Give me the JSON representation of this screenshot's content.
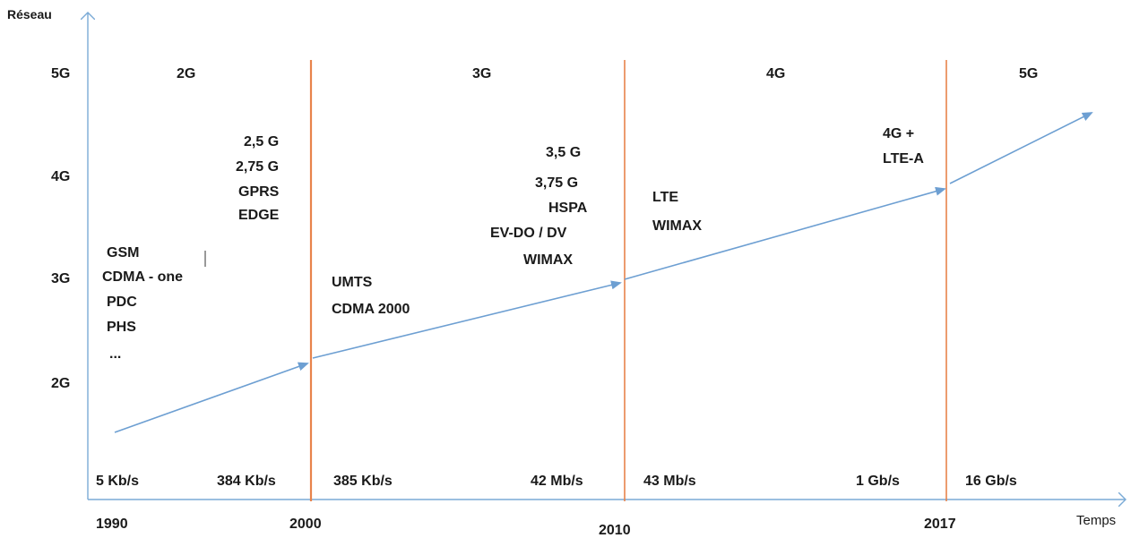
{
  "axes": {
    "y_title": "Réseau",
    "x_title": "Temps",
    "y_levels": [
      "5G",
      "4G",
      "3G",
      "2G"
    ],
    "years": [
      "1990",
      "2000",
      "2010",
      "2017"
    ]
  },
  "eras": [
    {
      "name": "2G",
      "technologies": [
        "GSM",
        "CDMA - one",
        "PDC",
        "PHS",
        "..."
      ],
      "speed_start": "5 Kb/s",
      "speed_end": "384 Kb/s"
    },
    {
      "name": "3G",
      "technologies": [
        "UMTS",
        "CDMA 2000"
      ],
      "speed_start": "385 Kb/s",
      "speed_end": "42 Mb/s"
    },
    {
      "name": "4G",
      "technologies": [
        "LTE",
        "WIMAX"
      ],
      "speed_start": "43 Mb/s",
      "speed_end": "1 Gb/s"
    },
    {
      "name": "5G",
      "technologies": [],
      "speed_start": "16 Gb/s",
      "speed_end": ""
    }
  ],
  "transitions": [
    {
      "labels": [
        "2,5 G",
        "2,75 G",
        "GPRS",
        "EDGE"
      ]
    },
    {
      "labels": [
        "3,5 G",
        "3,75 G",
        "HSPA",
        "EV-DO / DV",
        "WIMAX"
      ]
    },
    {
      "labels": [
        "4G +",
        "LTE-A"
      ]
    }
  ],
  "colors": {
    "axis": "#7aaad6",
    "arrow": "#6d9fd2",
    "divider": "#e8834b",
    "text": "#1a1a1a"
  }
}
